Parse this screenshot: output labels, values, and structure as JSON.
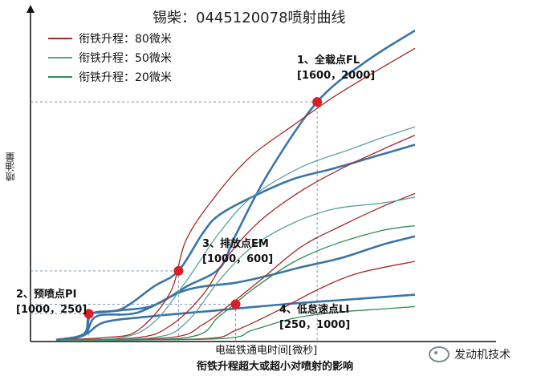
{
  "chart_data": {
    "type": "line",
    "title": "锡柴：0445120078喷射曲线",
    "xlabel": "电磁铁通电时间[微秒]",
    "ylabel": "喷油量",
    "caption": "衔铁升程超大或超小对喷射的影响",
    "xlim": [
      0,
      2500
    ],
    "ylim": [
      0,
      2600
    ],
    "legend": {
      "placement": "top-left",
      "entries": [
        {
          "label": "衔铁升程：80微米",
          "color": "#a52a2a"
        },
        {
          "label": "衔铁升程：50微米",
          "color": "#5aa39a"
        },
        {
          "label": "衔铁升程：20微米",
          "color": "#2e8b57"
        }
      ]
    },
    "series": [
      {
        "color": "#3a75a8",
        "width": 2.6,
        "points": [
          [
            0,
            0
          ],
          [
            170,
            50
          ],
          [
            200,
            210
          ],
          [
            260,
            230
          ],
          [
            400,
            250
          ],
          [
            600,
            290
          ],
          [
            800,
            450
          ],
          [
            1000,
            600
          ],
          [
            1100,
            880
          ],
          [
            1300,
            1400
          ],
          [
            1600,
            2000
          ],
          [
            1900,
            2340
          ],
          [
            2200,
            2600
          ]
        ]
      },
      {
        "color": "#3a75a8",
        "width": 2.6,
        "points": [
          [
            0,
            0
          ],
          [
            170,
            50
          ],
          [
            220,
            220
          ],
          [
            400,
            260
          ],
          [
            600,
            450
          ],
          [
            750,
            580
          ],
          [
            900,
            900
          ],
          [
            1000,
            1050
          ],
          [
            1200,
            1200
          ],
          [
            1450,
            1350
          ],
          [
            1700,
            1440
          ],
          [
            2000,
            1560
          ],
          [
            2200,
            1640
          ]
        ]
      },
      {
        "color": "#3a75a8",
        "width": 2.6,
        "points": [
          [
            0,
            0
          ],
          [
            170,
            40
          ],
          [
            250,
            200
          ],
          [
            500,
            230
          ],
          [
            800,
            420
          ],
          [
            1100,
            480
          ],
          [
            1300,
            540
          ],
          [
            1500,
            610
          ],
          [
            1750,
            690
          ],
          [
            2000,
            800
          ],
          [
            2200,
            870
          ]
        ]
      },
      {
        "color": "#3a75a8",
        "width": 2.6,
        "points": [
          [
            0,
            0
          ],
          [
            170,
            40
          ],
          [
            300,
            150
          ],
          [
            600,
            200
          ],
          [
            1000,
            250
          ],
          [
            1400,
            300
          ],
          [
            1800,
            340
          ],
          [
            2200,
            380
          ]
        ]
      },
      {
        "color": "#a52a2a",
        "width": 1.3,
        "points": [
          [
            0,
            0
          ],
          [
            300,
            20
          ],
          [
            500,
            80
          ],
          [
            700,
            400
          ],
          [
            800,
            850
          ],
          [
            1000,
            1250
          ],
          [
            1200,
            1550
          ],
          [
            1450,
            1800
          ],
          [
            1700,
            2040
          ],
          [
            1950,
            2250
          ],
          [
            2200,
            2450
          ]
        ]
      },
      {
        "color": "#a52a2a",
        "width": 1.3,
        "points": [
          [
            0,
            0
          ],
          [
            500,
            20
          ],
          [
            700,
            120
          ],
          [
            900,
            380
          ],
          [
            1050,
            700
          ],
          [
            1250,
            1000
          ],
          [
            1500,
            1250
          ],
          [
            1750,
            1440
          ],
          [
            2000,
            1600
          ],
          [
            2200,
            1720
          ]
        ]
      },
      {
        "color": "#a52a2a",
        "width": 1.3,
        "points": [
          [
            0,
            0
          ],
          [
            700,
            20
          ],
          [
            900,
            130
          ],
          [
            1050,
            280
          ],
          [
            1250,
            500
          ],
          [
            1500,
            780
          ],
          [
            1750,
            960
          ],
          [
            2000,
            1120
          ],
          [
            2200,
            1230
          ]
        ]
      },
      {
        "color": "#a52a2a",
        "width": 1.3,
        "points": [
          [
            0,
            0
          ],
          [
            900,
            10
          ],
          [
            1100,
            80
          ],
          [
            1350,
            240
          ],
          [
            1600,
            420
          ],
          [
            1850,
            560
          ],
          [
            2200,
            660
          ]
        ]
      },
      {
        "color": "#5aa39a",
        "width": 1.3,
        "points": [
          [
            0,
            0
          ],
          [
            400,
            20
          ],
          [
            600,
            150
          ],
          [
            800,
            500
          ],
          [
            1000,
            900
          ],
          [
            1200,
            1200
          ],
          [
            1500,
            1450
          ],
          [
            1800,
            1600
          ],
          [
            2000,
            1700
          ],
          [
            2200,
            1790
          ]
        ]
      },
      {
        "color": "#5aa39a",
        "width": 1.3,
        "points": [
          [
            0,
            0
          ],
          [
            600,
            20
          ],
          [
            800,
            150
          ],
          [
            1000,
            500
          ],
          [
            1200,
            780
          ],
          [
            1450,
            980
          ],
          [
            1700,
            1100
          ],
          [
            2000,
            1150
          ],
          [
            2200,
            1200
          ]
        ]
      },
      {
        "color": "#2e8b57",
        "width": 1.3,
        "points": [
          [
            0,
            0
          ],
          [
            800,
            20
          ],
          [
            1000,
            200
          ],
          [
            1200,
            420
          ],
          [
            1450,
            650
          ],
          [
            1700,
            800
          ],
          [
            2000,
            920
          ],
          [
            2200,
            960
          ]
        ]
      },
      {
        "color": "#2e8b57",
        "width": 1.3,
        "points": [
          [
            0,
            0
          ],
          [
            1000,
            10
          ],
          [
            1200,
            80
          ],
          [
            1450,
            180
          ],
          [
            1700,
            230
          ],
          [
            2000,
            260
          ],
          [
            2200,
            280
          ]
        ]
      }
    ],
    "points": [
      {
        "x": 200,
        "y": 220,
        "label_lines": [
          "2、预喷点PI",
          "[1000，250]"
        ],
        "label_pos": "left"
      },
      {
        "x": 750,
        "y": 580,
        "label_lines": [
          "3、排放点EM",
          "[1000，600]"
        ],
        "label_pos": "right"
      },
      {
        "x": 1100,
        "y": 300,
        "label_lines": [
          "4、低怠速点LI",
          "[250，1000]"
        ],
        "label_pos": "right-below"
      },
      {
        "x": 1600,
        "y": 2000,
        "label_lines": [
          "1、全载点FL",
          "[1600，2000]"
        ],
        "label_pos": "above"
      }
    ],
    "marker_color": "#d61f26"
  },
  "watermark": "发动机技术"
}
